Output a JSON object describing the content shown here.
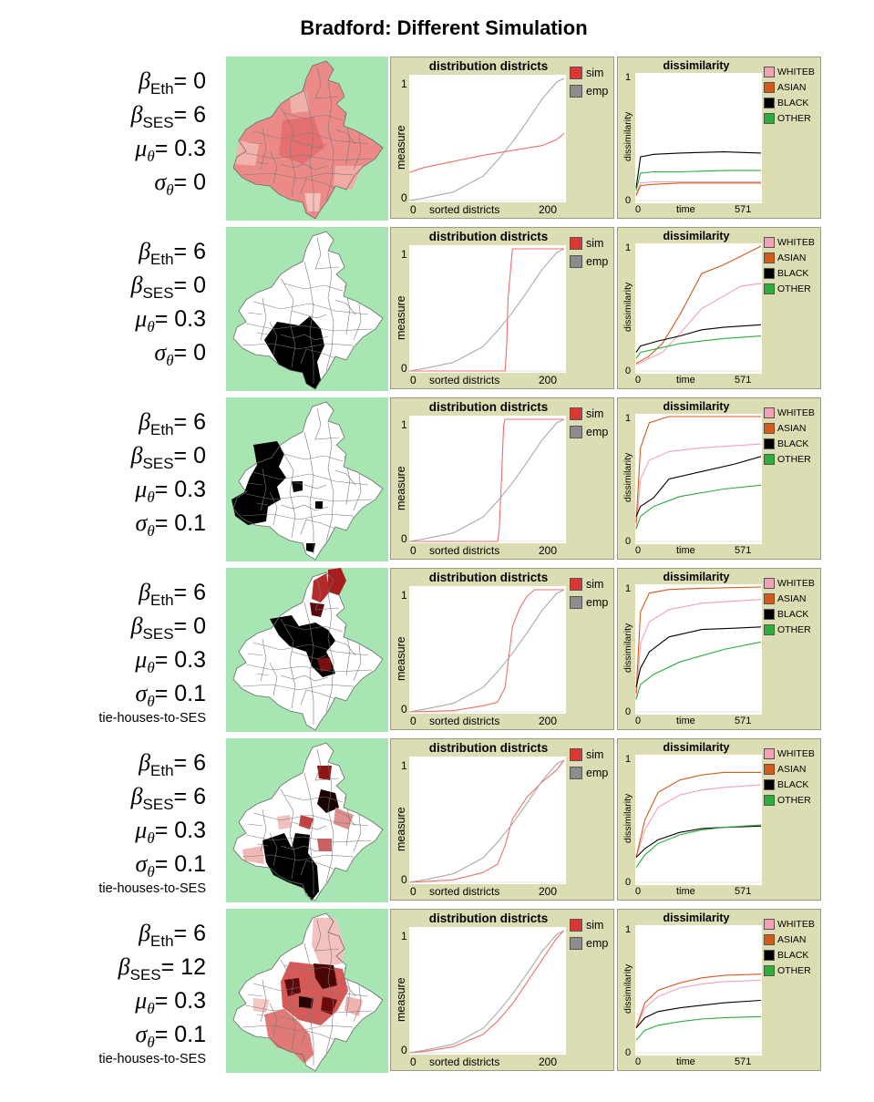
{
  "title": "Bradford: Different Simulation",
  "colors": {
    "map_background": "#a7e6b2",
    "panel_background": "#ddddb4",
    "sim": "#ef6f6c",
    "emp": "#a9a9a9",
    "WHITEB": "#f1a1b8",
    "ASIAN": "#d45a1a",
    "BLACK": "#000000",
    "OTHER": "#2cae3a"
  },
  "rows": [
    {
      "beta_eth": "= 0",
      "beta_ses": "= 6",
      "mu": "= 0.3",
      "sigma": "= 0",
      "tie": "",
      "map": "mixed-pink"
    },
    {
      "beta_eth": "= 6",
      "beta_ses": "= 0",
      "mu": "= 0.3",
      "sigma": "= 0",
      "tie": "",
      "map": "black-south"
    },
    {
      "beta_eth": "= 6",
      "beta_ses": "= 0",
      "mu": "= 0.3",
      "sigma": "= 0.1",
      "tie": "",
      "map": "black-west"
    },
    {
      "beta_eth": "= 6",
      "beta_ses": "= 0",
      "mu": "= 0.3",
      "sigma": "= 0.1",
      "tie": "tie-houses-to-SES",
      "map": "black-center-north"
    },
    {
      "beta_eth": "= 6",
      "beta_ses": "= 6",
      "mu": "= 0.3",
      "sigma": "= 0.1",
      "tie": "tie-houses-to-SES",
      "map": "black-south-spread"
    },
    {
      "beta_eth": "= 6",
      "beta_ses": "= 12",
      "mu": "= 0.3",
      "sigma": "= 0.1",
      "tie": "tie-houses-to-SES",
      "map": "red-spread"
    }
  ],
  "labels": {
    "beta": "β",
    "mu": "μ",
    "sigma": "σ",
    "theta": "θ",
    "eth": "Eth",
    "ses": "SES"
  },
  "chart_data": [
    {
      "type": "line",
      "title": "distribution districts",
      "xlabel": "sorted districts",
      "ylabel": "measure",
      "xlim": [
        0,
        200
      ],
      "ylim": [
        0,
        1
      ],
      "x_ticks": [
        "0",
        "200"
      ],
      "y_ticks": [
        "0",
        "1"
      ],
      "legend": [
        "sim",
        "emp"
      ],
      "legend_position": "right",
      "panels": [
        {
          "series": [
            {
              "name": "sim",
              "x": [
                0,
                20,
                60,
                100,
                140,
                180,
                200,
                210
              ],
              "values": [
                0.23,
                0.27,
                0.32,
                0.37,
                0.41,
                0.45,
                0.5,
                0.55
              ]
            },
            {
              "name": "emp",
              "x": [
                0,
                20,
                60,
                100,
                120,
                140,
                160,
                180,
                200,
                210
              ],
              "values": [
                0,
                0.02,
                0.07,
                0.2,
                0.33,
                0.48,
                0.65,
                0.83,
                0.97,
                1
              ]
            }
          ]
        },
        {
          "series": [
            {
              "name": "sim",
              "x": [
                0,
                100,
                130,
                132,
                134,
                140,
                155,
                160,
                210
              ],
              "values": [
                0,
                0,
                0,
                0.2,
                0.6,
                1,
                1,
                1,
                1
              ]
            },
            {
              "name": "emp",
              "x": [
                0,
                20,
                60,
                100,
                120,
                140,
                160,
                180,
                200,
                210
              ],
              "values": [
                0,
                0.02,
                0.07,
                0.2,
                0.33,
                0.48,
                0.65,
                0.83,
                0.97,
                1
              ]
            }
          ]
        },
        {
          "series": [
            {
              "name": "sim",
              "x": [
                0,
                120,
                122,
                125,
                128,
                130,
                140,
                160,
                210
              ],
              "values": [
                0,
                0,
                0.1,
                0.5,
                0.95,
                1,
                1,
                1,
                1
              ]
            },
            {
              "name": "emp",
              "x": [
                0,
                20,
                60,
                100,
                120,
                140,
                160,
                180,
                200,
                210
              ],
              "values": [
                0,
                0.02,
                0.07,
                0.2,
                0.33,
                0.48,
                0.65,
                0.83,
                0.97,
                1
              ]
            }
          ]
        },
        {
          "series": [
            {
              "name": "sim",
              "x": [
                0,
                60,
                100,
                120,
                130,
                135,
                140,
                150,
                160,
                170,
                210
              ],
              "values": [
                0,
                0.01,
                0.05,
                0.08,
                0.2,
                0.45,
                0.7,
                0.85,
                0.95,
                1,
                1
              ]
            },
            {
              "name": "emp",
              "x": [
                0,
                20,
                60,
                100,
                120,
                140,
                160,
                180,
                200,
                210
              ],
              "values": [
                0,
                0.02,
                0.07,
                0.2,
                0.33,
                0.48,
                0.65,
                0.83,
                0.97,
                1
              ]
            }
          ]
        },
        {
          "series": [
            {
              "name": "sim",
              "x": [
                0,
                60,
                100,
                120,
                130,
                140,
                160,
                180,
                200,
                210
              ],
              "values": [
                0,
                0.02,
                0.08,
                0.15,
                0.3,
                0.52,
                0.7,
                0.82,
                0.92,
                1
              ]
            },
            {
              "name": "emp",
              "x": [
                0,
                20,
                60,
                100,
                120,
                140,
                160,
                180,
                200,
                210
              ],
              "values": [
                0,
                0.02,
                0.07,
                0.2,
                0.33,
                0.48,
                0.65,
                0.83,
                0.97,
                1
              ]
            }
          ]
        },
        {
          "series": [
            {
              "name": "sim",
              "x": [
                0,
                20,
                60,
                100,
                120,
                140,
                160,
                180,
                200,
                210
              ],
              "values": [
                0,
                0.01,
                0.05,
                0.15,
                0.26,
                0.4,
                0.58,
                0.76,
                0.94,
                1
              ]
            },
            {
              "name": "emp",
              "x": [
                0,
                20,
                60,
                100,
                120,
                140,
                160,
                180,
                200,
                210
              ],
              "values": [
                0,
                0.02,
                0.07,
                0.2,
                0.33,
                0.48,
                0.65,
                0.83,
                0.97,
                1
              ]
            }
          ]
        }
      ]
    },
    {
      "type": "line",
      "title": "dissimilarity",
      "xlabel": "time",
      "ylabel": "dissimilarity",
      "xlim": [
        0,
        571
      ],
      "ylim": [
        0,
        1
      ],
      "x_ticks": [
        "0",
        "time",
        "571"
      ],
      "y_ticks": [
        "0",
        "1"
      ],
      "legend": [
        "WHITEB",
        "ASIAN",
        "BLACK",
        "OTHER"
      ],
      "legend_position": "right",
      "panels": [
        {
          "series": [
            {
              "name": "WHITEB",
              "x": [
                0,
                20,
                80,
                200,
                400,
                571
              ],
              "values": [
                0.05,
                0.14,
                0.15,
                0.15,
                0.15,
                0.15
              ]
            },
            {
              "name": "ASIAN",
              "x": [
                0,
                20,
                80,
                200,
                400,
                571
              ],
              "values": [
                0.04,
                0.12,
                0.13,
                0.14,
                0.14,
                0.14
              ]
            },
            {
              "name": "BLACK",
              "x": [
                0,
                20,
                80,
                200,
                400,
                571
              ],
              "values": [
                0.1,
                0.35,
                0.37,
                0.38,
                0.39,
                0.38
              ]
            },
            {
              "name": "OTHER",
              "x": [
                0,
                20,
                80,
                200,
                400,
                571
              ],
              "values": [
                0.08,
                0.22,
                0.23,
                0.23,
                0.24,
                0.24
              ]
            }
          ]
        },
        {
          "series": [
            {
              "name": "WHITEB",
              "x": [
                0,
                60,
                120,
                200,
                300,
                400,
                480,
                571
              ],
              "values": [
                0.05,
                0.1,
                0.15,
                0.3,
                0.5,
                0.6,
                0.68,
                0.7
              ]
            },
            {
              "name": "ASIAN",
              "x": [
                0,
                60,
                120,
                200,
                300,
                400,
                480,
                571
              ],
              "values": [
                0.06,
                0.12,
                0.22,
                0.45,
                0.78,
                0.85,
                0.92,
                1
              ]
            },
            {
              "name": "BLACK",
              "x": [
                0,
                20,
                100,
                200,
                300,
                400,
                571
              ],
              "values": [
                0.15,
                0.2,
                0.24,
                0.28,
                0.33,
                0.35,
                0.37
              ]
            },
            {
              "name": "OTHER",
              "x": [
                0,
                20,
                100,
                200,
                300,
                400,
                571
              ],
              "values": [
                0.1,
                0.15,
                0.18,
                0.22,
                0.24,
                0.26,
                0.28
              ]
            }
          ]
        },
        {
          "series": [
            {
              "name": "WHITEB",
              "x": [
                0,
                20,
                60,
                150,
                300,
                571
              ],
              "values": [
                0.1,
                0.5,
                0.65,
                0.72,
                0.75,
                0.78
              ]
            },
            {
              "name": "ASIAN",
              "x": [
                0,
                20,
                60,
                150,
                300,
                571
              ],
              "values": [
                0.15,
                0.75,
                0.95,
                1,
                1,
                1
              ]
            },
            {
              "name": "BLACK",
              "x": [
                0,
                20,
                80,
                150,
                300,
                450,
                571
              ],
              "values": [
                0.2,
                0.28,
                0.35,
                0.5,
                0.56,
                0.62,
                0.68
              ]
            },
            {
              "name": "OTHER",
              "x": [
                0,
                20,
                80,
                200,
                400,
                571
              ],
              "values": [
                0.1,
                0.2,
                0.28,
                0.36,
                0.42,
                0.45
              ]
            }
          ]
        },
        {
          "series": [
            {
              "name": "WHITEB",
              "x": [
                0,
                20,
                60,
                150,
                300,
                571
              ],
              "values": [
                0.1,
                0.55,
                0.72,
                0.82,
                0.87,
                0.9
              ]
            },
            {
              "name": "ASIAN",
              "x": [
                0,
                20,
                60,
                150,
                300,
                571
              ],
              "values": [
                0.15,
                0.8,
                0.95,
                0.98,
                0.99,
                1
              ]
            },
            {
              "name": "BLACK",
              "x": [
                0,
                20,
                60,
                150,
                300,
                450,
                571
              ],
              "values": [
                0.2,
                0.35,
                0.48,
                0.6,
                0.66,
                0.67,
                0.68
              ]
            },
            {
              "name": "OTHER",
              "x": [
                0,
                20,
                80,
                200,
                400,
                571
              ],
              "values": [
                0.1,
                0.22,
                0.3,
                0.4,
                0.5,
                0.56
              ]
            }
          ]
        },
        {
          "series": [
            {
              "name": "WHITEB",
              "x": [
                0,
                40,
                100,
                200,
                300,
                400,
                571
              ],
              "values": [
                0.2,
                0.42,
                0.6,
                0.7,
                0.74,
                0.76,
                0.78
              ]
            },
            {
              "name": "ASIAN",
              "x": [
                0,
                40,
                100,
                200,
                300,
                400,
                571
              ],
              "values": [
                0.2,
                0.5,
                0.72,
                0.82,
                0.86,
                0.88,
                0.88
              ]
            },
            {
              "name": "BLACK",
              "x": [
                0,
                40,
                100,
                200,
                300,
                400,
                571
              ],
              "values": [
                0.2,
                0.27,
                0.34,
                0.4,
                0.43,
                0.44,
                0.45
              ]
            },
            {
              "name": "OTHER",
              "x": [
                0,
                40,
                100,
                200,
                300,
                400,
                571
              ],
              "values": [
                0.12,
                0.22,
                0.31,
                0.38,
                0.42,
                0.44,
                0.46
              ]
            }
          ]
        },
        {
          "series": [
            {
              "name": "WHITEB",
              "x": [
                0,
                40,
                100,
                200,
                300,
                400,
                571
              ],
              "values": [
                0.2,
                0.36,
                0.45,
                0.52,
                0.55,
                0.57,
                0.58
              ]
            },
            {
              "name": "ASIAN",
              "x": [
                0,
                40,
                100,
                200,
                300,
                400,
                571
              ],
              "values": [
                0.2,
                0.4,
                0.5,
                0.56,
                0.6,
                0.62,
                0.63
              ]
            },
            {
              "name": "BLACK",
              "x": [
                0,
                40,
                100,
                200,
                300,
                400,
                571
              ],
              "values": [
                0.2,
                0.28,
                0.33,
                0.36,
                0.38,
                0.4,
                0.42
              ]
            },
            {
              "name": "OTHER",
              "x": [
                0,
                40,
                100,
                200,
                300,
                400,
                571
              ],
              "values": [
                0.1,
                0.18,
                0.22,
                0.25,
                0.27,
                0.28,
                0.29
              ]
            }
          ]
        }
      ]
    }
  ]
}
